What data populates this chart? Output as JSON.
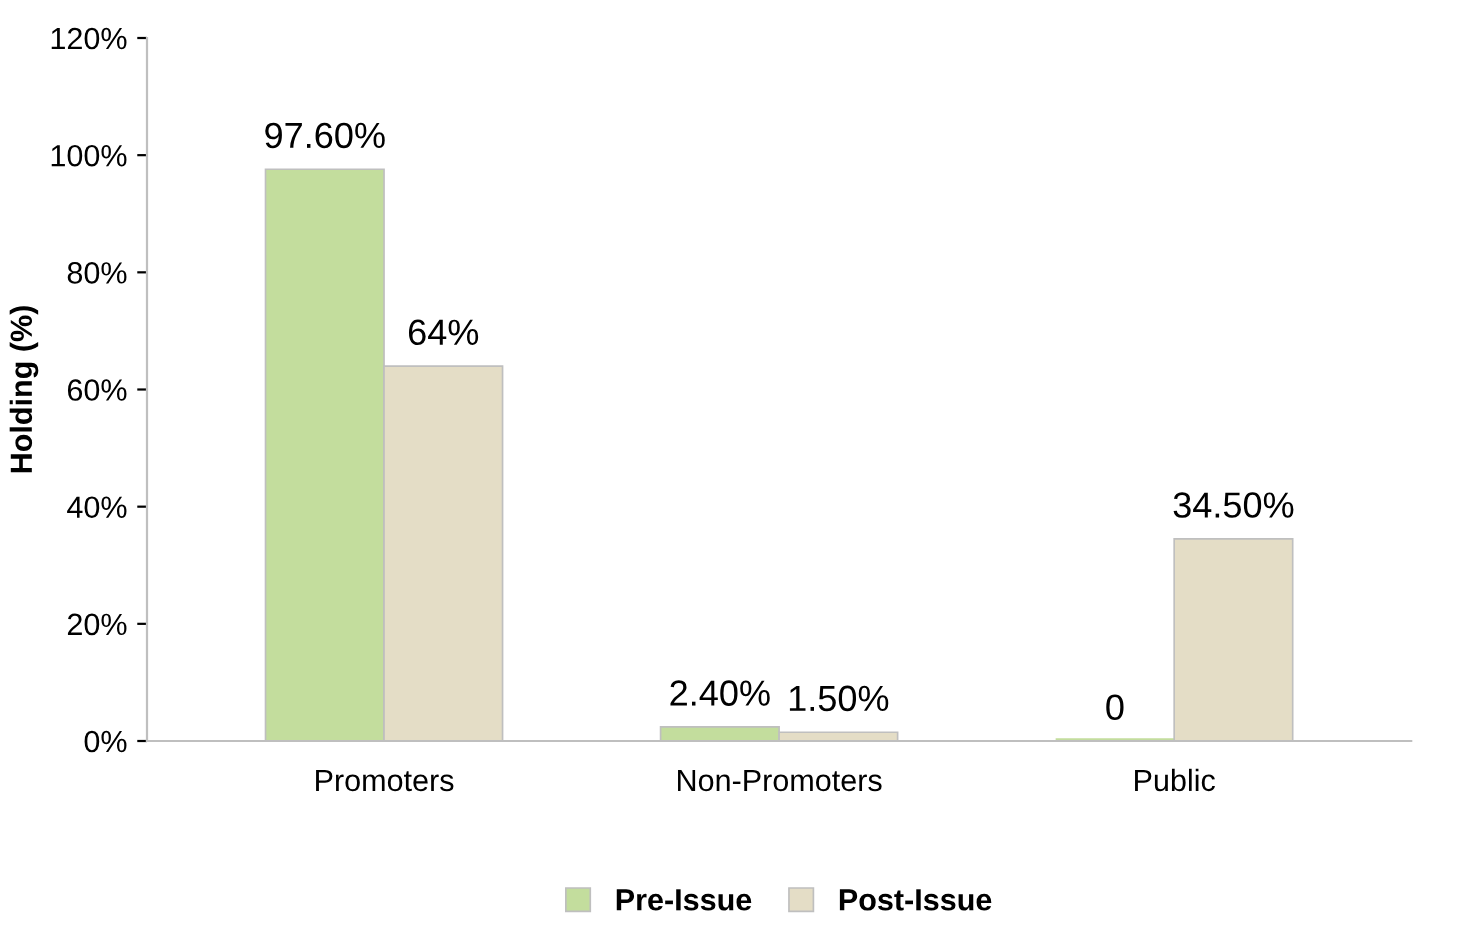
{
  "chart_data": {
    "type": "bar",
    "ylabel": "Holding (%)",
    "categories": [
      "Promoters",
      "Non-Promoters",
      "Public"
    ],
    "series": [
      {
        "name": "Pre-Issue",
        "color": "#c3dd9d",
        "values": [
          97.6,
          2.4,
          0
        ],
        "value_labels": [
          "97.60%",
          "2.40%",
          "0"
        ]
      },
      {
        "name": "Post-Issue",
        "color": "#e4ddc6",
        "values": [
          64,
          1.5,
          34.5
        ],
        "value_labels": [
          "64%",
          "1.50%",
          "34.50%"
        ]
      }
    ],
    "ylim": [
      0,
      120
    ],
    "yticks": [
      {
        "value": 0,
        "label": "0%"
      },
      {
        "value": 20,
        "label": "20%"
      },
      {
        "value": 40,
        "label": "40%"
      },
      {
        "value": 60,
        "label": "60%"
      },
      {
        "value": 80,
        "label": "80%"
      },
      {
        "value": 100,
        "label": "100%"
      },
      {
        "value": 120,
        "label": "120%"
      }
    ],
    "grid": false,
    "legend": "bottom"
  }
}
